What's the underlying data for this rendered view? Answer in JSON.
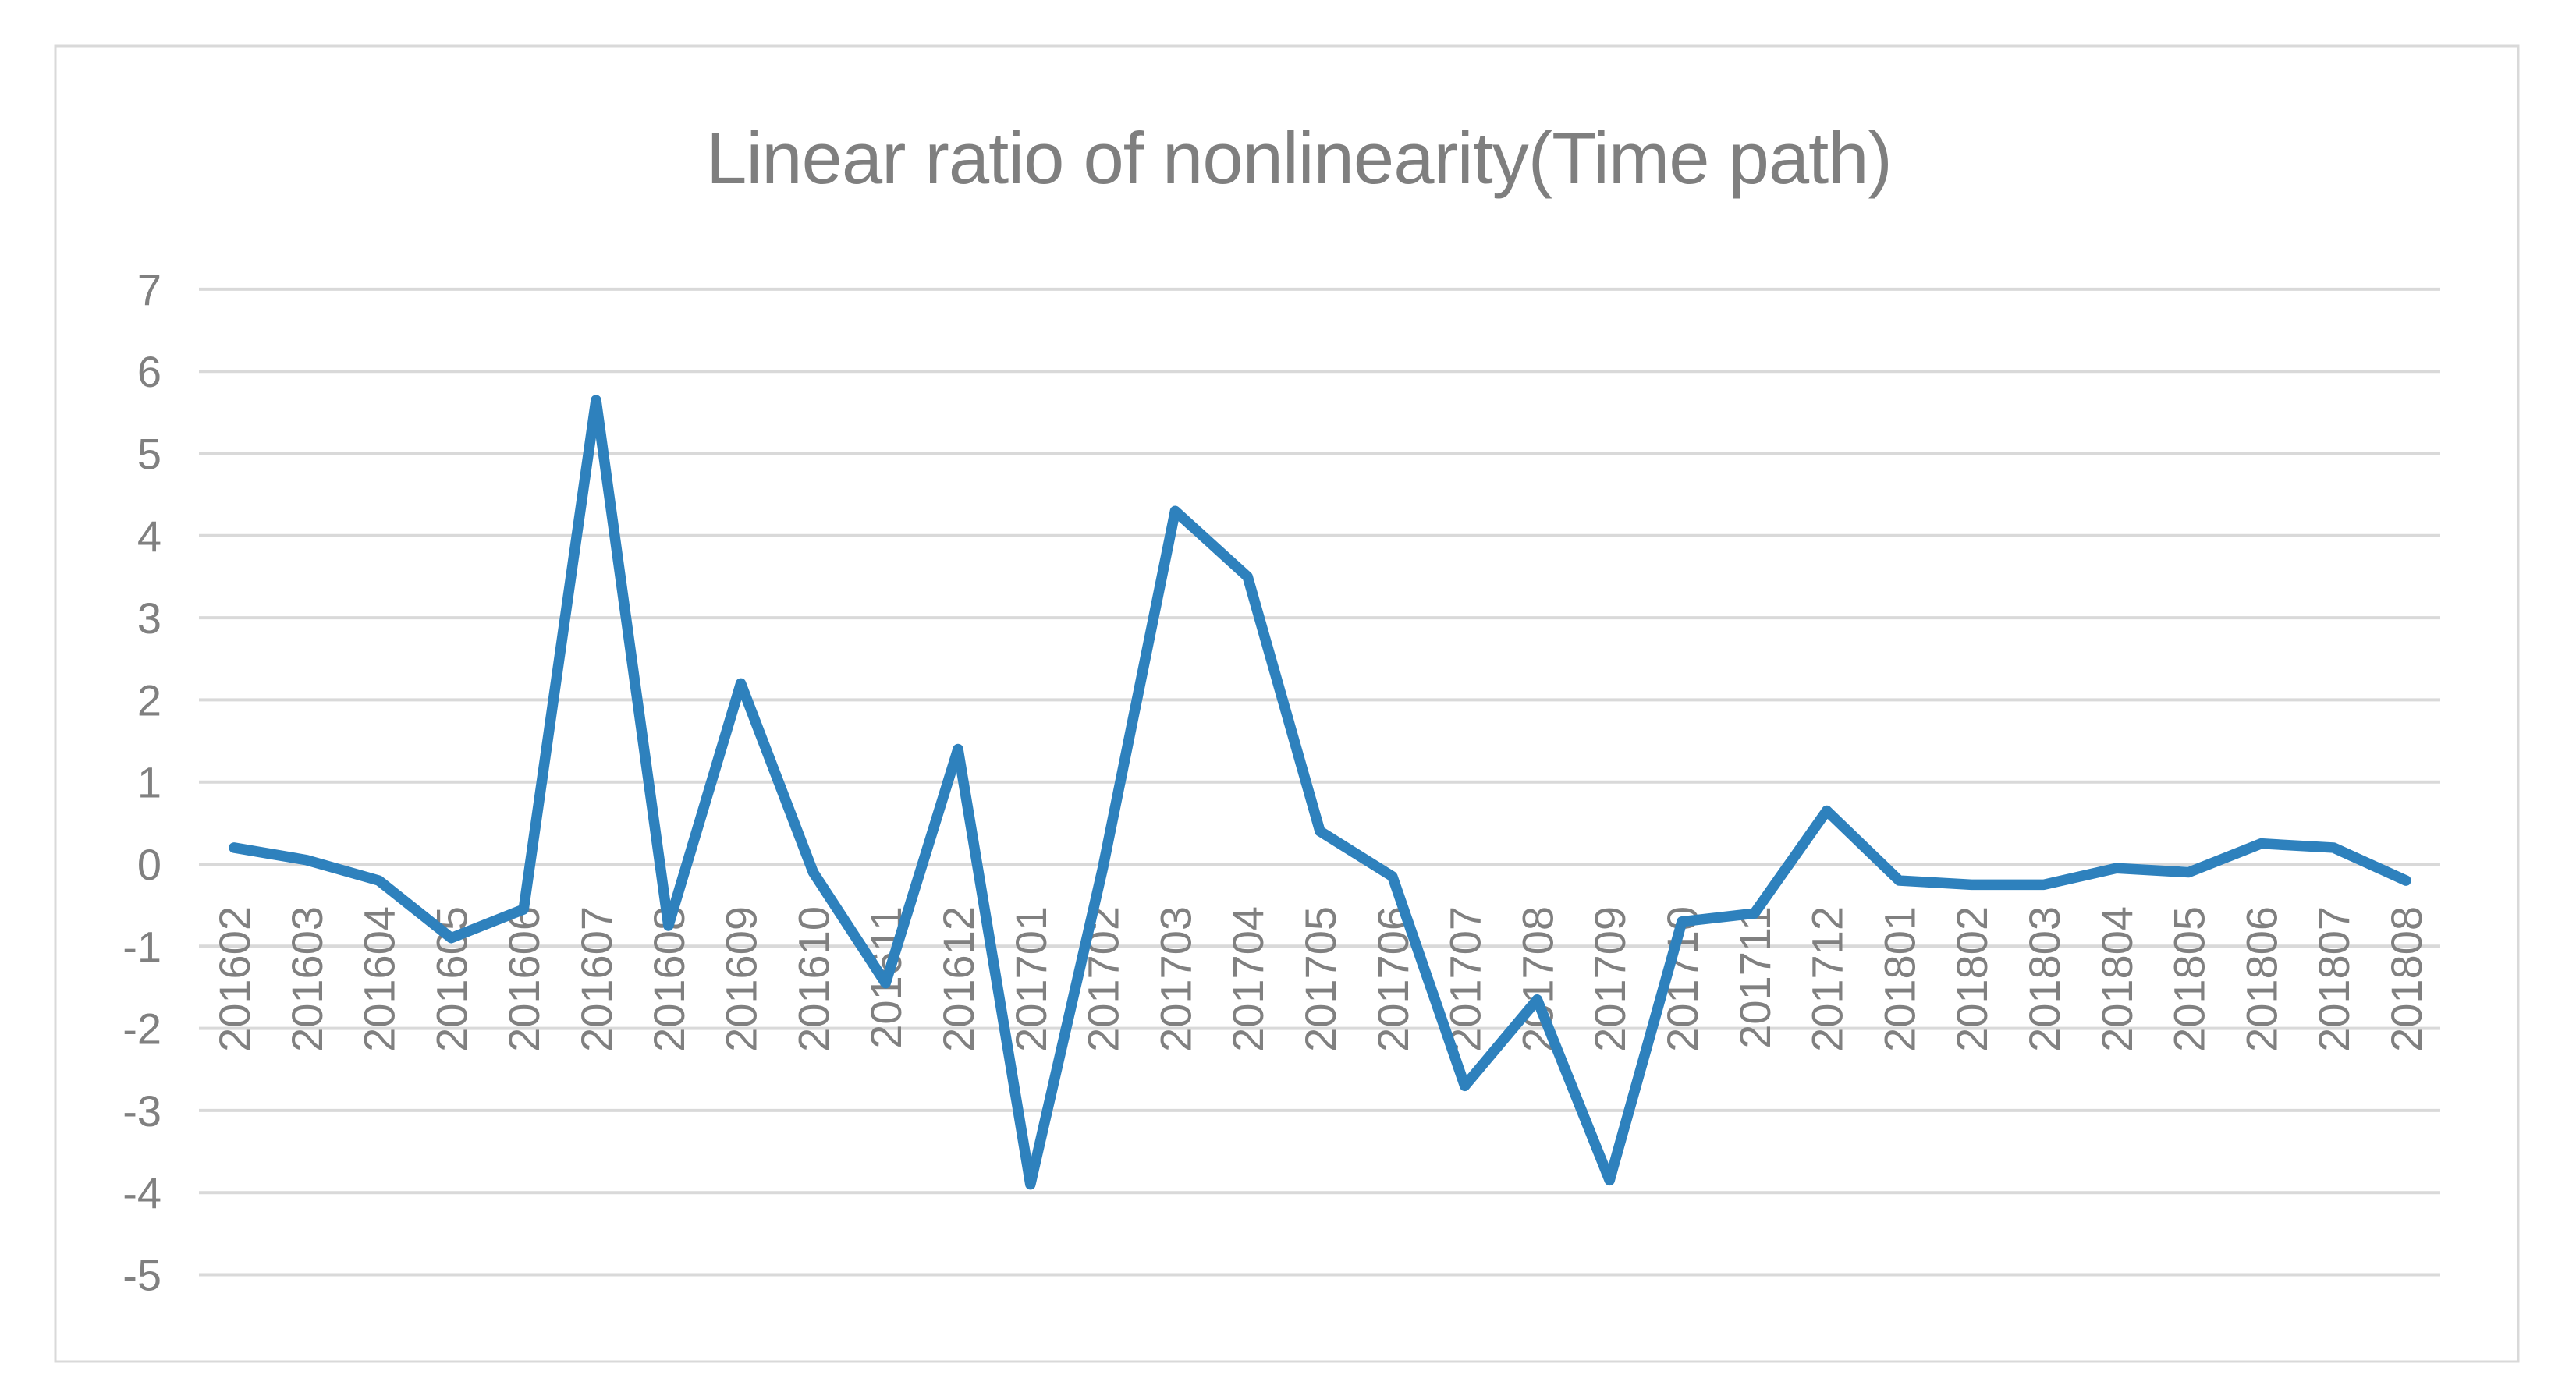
{
  "chart_data": {
    "type": "line",
    "title": "Linear ratio of nonlinearity(Time path)",
    "categories": [
      "201602",
      "201603",
      "201604",
      "201605",
      "201606",
      "201607",
      "201608",
      "201609",
      "201610",
      "201611",
      "201612",
      "201701",
      "201702",
      "201703",
      "201704",
      "201705",
      "201706",
      "201707",
      "201708",
      "201709",
      "201710",
      "201711",
      "201712",
      "201801",
      "201802",
      "201803",
      "201804",
      "201805",
      "201806",
      "201807",
      "201808"
    ],
    "values": [
      0.2,
      0.05,
      -0.2,
      -0.9,
      -0.55,
      5.65,
      -0.75,
      2.2,
      -0.1,
      -1.45,
      1.4,
      -3.9,
      -0.05,
      4.3,
      3.5,
      0.4,
      -0.15,
      -2.7,
      -1.65,
      -3.85,
      -0.7,
      -0.6,
      0.65,
      -0.2,
      -0.25,
      -0.25,
      -0.05,
      -0.1,
      0.25,
      0.2,
      -0.2
    ],
    "xlabel": "",
    "ylabel": "",
    "ylim": [
      -5,
      7
    ],
    "y_ticks": [
      7,
      6,
      5,
      4,
      3,
      2,
      1,
      0,
      -1,
      -2,
      -3,
      -4,
      -5
    ],
    "x_label_rotation_deg": -90,
    "grid": "horizontal",
    "legend": "none",
    "colors": {
      "line": "#2E81BD",
      "gridline": "#D9D9D9",
      "chart_border": "#D9D9D9",
      "tick_text": "#808080",
      "title_text": "#7F7F7F",
      "background": "#FFFFFF"
    }
  }
}
